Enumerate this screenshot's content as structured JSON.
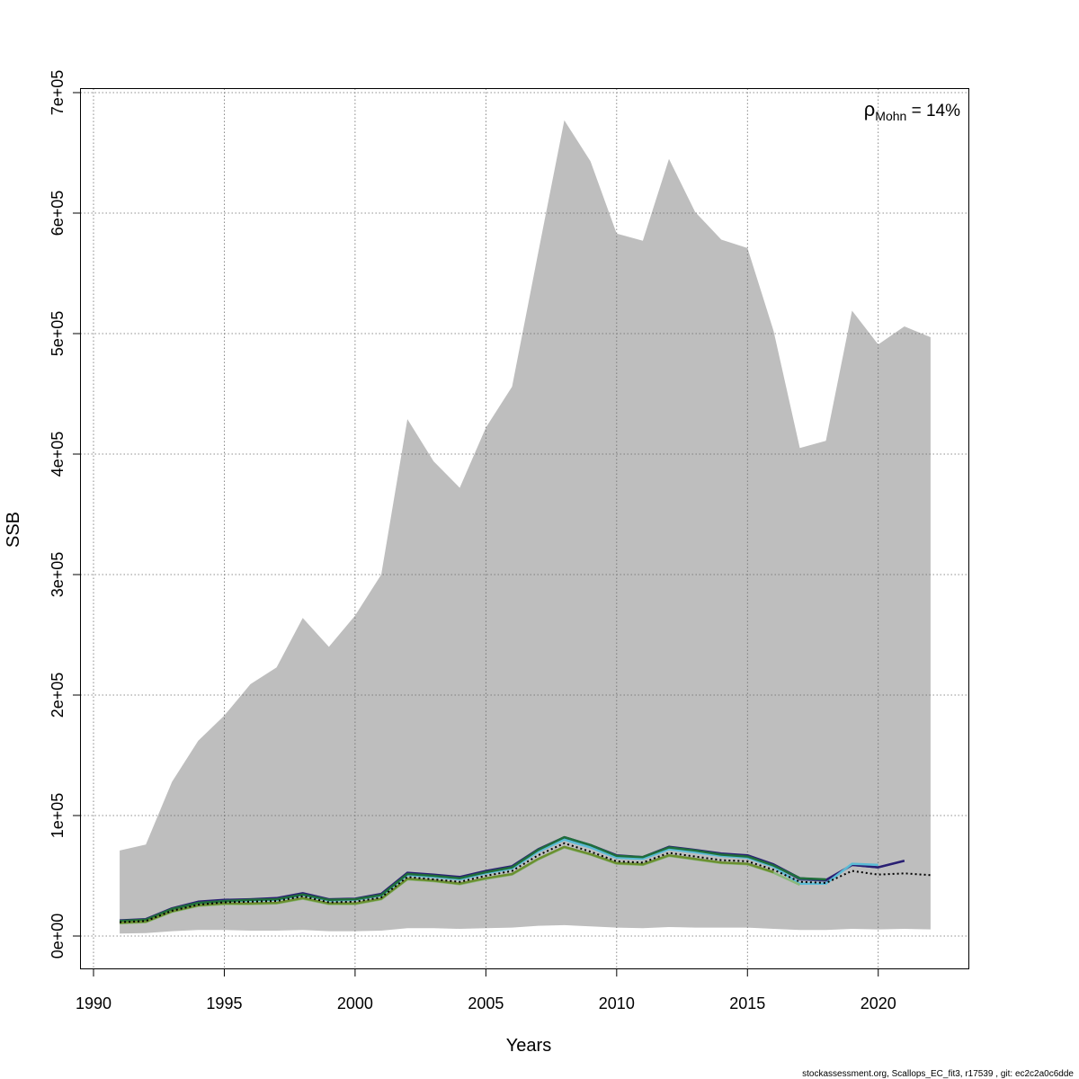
{
  "chart_data": {
    "type": "line",
    "xlabel": "Years",
    "ylabel": "SSB",
    "xlim": [
      1990,
      2023
    ],
    "ylim": [
      0,
      700000
    ],
    "grid": true,
    "x_ticks": [
      1990,
      1995,
      2000,
      2005,
      2010,
      2015,
      2020
    ],
    "y_ticks": [
      0,
      100000,
      200000,
      300000,
      400000,
      500000,
      600000,
      700000
    ],
    "y_tick_labels": [
      "0e+00",
      "1e+05",
      "2e+05",
      "3e+05",
      "4e+05",
      "5e+05",
      "6e+05",
      "7e+05"
    ],
    "annotation": {
      "symbol": "ρ",
      "subscript": "Mohn",
      "text": " = 14%"
    },
    "footer": "stockassessment.org, Scallops_EC_fit3, r17539 , git: ec2c2a0c6dde",
    "colors": {
      "band": "#bebebe",
      "grid": "#6b6b6b",
      "base": "#000000"
    },
    "band": {
      "x": [
        1991,
        1992,
        1993,
        1994,
        1995,
        1996,
        1997,
        1998,
        1999,
        2000,
        2001,
        2002,
        2003,
        2004,
        2005,
        2006,
        2007,
        2008,
        2009,
        2010,
        2011,
        2012,
        2013,
        2014,
        2015,
        2016,
        2017,
        2018,
        2019,
        2020,
        2021,
        2022
      ],
      "upper": [
        71000,
        76000,
        128000,
        162000,
        183000,
        209000,
        223000,
        264000,
        240000,
        266000,
        300000,
        429000,
        394000,
        372000,
        422000,
        456000,
        567000,
        677000,
        643000,
        583000,
        577000,
        645000,
        601000,
        578000,
        571000,
        502000,
        405000,
        411000,
        519000,
        491000,
        506000,
        497000
      ],
      "lower": [
        2000,
        2500,
        4000,
        5000,
        5000,
        4500,
        4500,
        5000,
        4000,
        4000,
        4500,
        6500,
        6500,
        6000,
        6500,
        7000,
        8500,
        9000,
        8000,
        7000,
        6500,
        7500,
        7000,
        7000,
        7000,
        6000,
        5000,
        5000,
        6000,
        5500,
        6000,
        5500
      ]
    },
    "series": [
      {
        "style": "dotted",
        "color": "#000000",
        "x": [
          1991,
          1992,
          1993,
          1994,
          1995,
          1996,
          1997,
          1998,
          1999,
          2000,
          2001,
          2002,
          2003,
          2004,
          2005,
          2006,
          2007,
          2008,
          2009,
          2010,
          2011,
          2012,
          2013,
          2014,
          2015,
          2016,
          2017,
          2018,
          2019,
          2020,
          2021,
          2022
        ],
        "values": [
          11500,
          12500,
          21000,
          26000,
          28000,
          28500,
          29000,
          33000,
          28000,
          28500,
          32000,
          49000,
          47000,
          45000,
          50000,
          54000,
          67000,
          77000,
          70000,
          62000,
          61000,
          69000,
          66000,
          63000,
          62000,
          55000,
          45000,
          44000,
          54000,
          51000,
          52000,
          50500
        ]
      },
      {
        "color": "#3f4a8a",
        "x": [
          1991,
          1992,
          1993,
          1994,
          1995,
          1996,
          1997,
          1998,
          1999,
          2000,
          2001,
          2002,
          2003,
          2004,
          2005,
          2006,
          2007,
          2008,
          2009,
          2010,
          2011,
          2012,
          2013,
          2014,
          2015,
          2016,
          2017,
          2018,
          2019,
          2020,
          2021
        ],
        "values": [
          12500,
          13500,
          22500,
          27500,
          29500,
          30000,
          31000,
          35000,
          30000,
          30500,
          34000,
          51500,
          50000,
          48000,
          53000,
          57000,
          71000,
          81000,
          75000,
          66000,
          65000,
          73000,
          71000,
          68000,
          66500,
          59000,
          47000,
          46000,
          59000,
          57000,
          62500
        ]
      },
      {
        "color": "#2a1f73",
        "x": [
          1991,
          1992,
          1993,
          1994,
          1995,
          1996,
          1997,
          1998,
          1999,
          2000,
          2001,
          2002,
          2003,
          2004,
          2005,
          2006,
          2007,
          2008,
          2009,
          2010,
          2011,
          2012,
          2013,
          2014,
          2015,
          2016,
          2017,
          2018,
          2019,
          2020,
          2021
        ],
        "values": [
          13000,
          14000,
          23000,
          28500,
          30000,
          30500,
          31500,
          35500,
          30500,
          31000,
          35000,
          52500,
          51000,
          49000,
          54000,
          58000,
          72000,
          82000,
          75500,
          67000,
          65500,
          74000,
          71500,
          68500,
          67000,
          59500,
          48000,
          46500,
          59000,
          57000,
          62500
        ]
      },
      {
        "color": "#5bbcd6",
        "x": [
          1991,
          1992,
          1993,
          1994,
          1995,
          1996,
          1997,
          1998,
          1999,
          2000,
          2001,
          2002,
          2003,
          2004,
          2005,
          2006,
          2007,
          2008,
          2009,
          2010,
          2011,
          2012,
          2013,
          2014,
          2015,
          2016,
          2017,
          2018,
          2019,
          2020
        ],
        "values": [
          12000,
          13000,
          22000,
          27000,
          29000,
          29500,
          30000,
          34000,
          29500,
          30000,
          33500,
          50500,
          49000,
          47000,
          52000,
          56000,
          70000,
          80000,
          73500,
          65000,
          64000,
          72000,
          69500,
          66500,
          65000,
          57500,
          43500,
          43500,
          60000,
          59000
        ]
      },
      {
        "color": "#1f6e3a",
        "x": [
          1991,
          1992,
          1993,
          1994,
          1995,
          1996,
          1997,
          1998,
          1999,
          2000,
          2001,
          2002,
          2003,
          2004,
          2005,
          2006,
          2007,
          2008,
          2009,
          2010,
          2011,
          2012,
          2013,
          2014,
          2015,
          2016,
          2017,
          2018
        ],
        "values": [
          12500,
          13500,
          22500,
          27500,
          29000,
          30000,
          30500,
          34500,
          30000,
          30500,
          34000,
          51500,
          50000,
          48000,
          53000,
          57000,
          71500,
          82000,
          75500,
          66500,
          65500,
          73500,
          71000,
          67500,
          66000,
          58500,
          48000,
          47000
        ]
      },
      {
        "color": "#8ab87a",
        "x": [
          1991,
          1992,
          1993,
          1994,
          1995,
          1996,
          1997,
          1998,
          1999,
          2000,
          2001,
          2002,
          2003,
          2004,
          2005,
          2006,
          2007,
          2008,
          2009,
          2010,
          2011,
          2012,
          2013,
          2014,
          2015,
          2016,
          2017
        ],
        "values": [
          10500,
          11500,
          20000,
          25000,
          26500,
          26500,
          27000,
          31000,
          26500,
          26500,
          30500,
          47000,
          45500,
          43000,
          47500,
          51000,
          63500,
          73500,
          67500,
          60000,
          59000,
          66500,
          63500,
          60500,
          59500,
          52500,
          42500
        ]
      },
      {
        "color": "#6b8f2f",
        "x": [
          1991,
          1992,
          1993,
          1994,
          1995,
          1996,
          1997,
          1998,
          1999,
          2000,
          2001,
          2002,
          2003,
          2004,
          2005,
          2006,
          2007,
          2008,
          2009,
          2010,
          2011,
          2012,
          2013,
          2014,
          2015,
          2016
        ],
        "values": [
          11000,
          12000,
          20500,
          25500,
          27000,
          27000,
          27500,
          31500,
          27000,
          27000,
          31000,
          47500,
          46000,
          43500,
          48000,
          51500,
          64000,
          74000,
          68000,
          60500,
          59500,
          67000,
          64000,
          61000,
          60000,
          53000
        ]
      }
    ]
  }
}
